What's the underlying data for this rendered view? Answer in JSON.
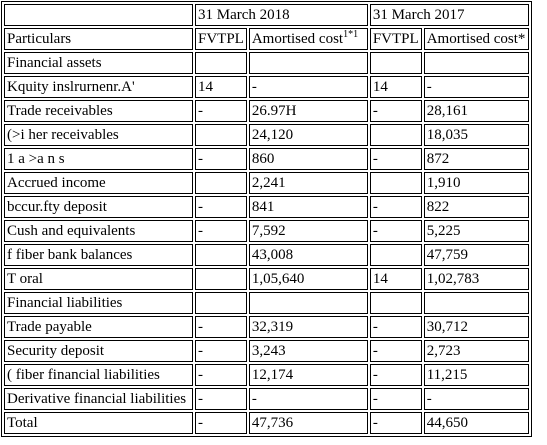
{
  "header": {
    "year_2018": "31 March 2018",
    "year_2017": "31 March 2017",
    "particulars": "Particulars",
    "fvtpl_2018": "FVTPL",
    "amortised_2018": "Amortised cost",
    "amortised_2018_sup": "1*1",
    "fvtpl_2017": "FVTPL",
    "amortised_2017": "Amortised cost*"
  },
  "rows": [
    {
      "label": "Financial assets",
      "fv18": "",
      "am18": "",
      "fv17": "",
      "am17": ""
    },
    {
      "label": "Kquity inslrurnenr.A'",
      "fv18": "14",
      "am18": "-",
      "fv17": "14",
      "am17": "-"
    },
    {
      "label": "Trade receivables",
      "fv18": "-",
      "am18": "26.97H",
      "fv17": "-",
      "am17": "28,161"
    },
    {
      "label": "(>i her receivables",
      "fv18": "",
      "am18": "24,120",
      "fv17": "",
      "am17": "18,035"
    },
    {
      "label": "1 a >a n s",
      "fv18": "-",
      "am18": "860",
      "fv17": "-",
      "am17": "872"
    },
    {
      "label": "Accrued income",
      "fv18": "",
      "am18": "2,241",
      "fv17": "",
      "am17": "1,910"
    },
    {
      "label": "bccur.fty deposit",
      "fv18": "-",
      "am18": "841",
      "fv17": "-",
      "am17": "822"
    },
    {
      "label": "Cush and equivalents",
      "fv18": "-",
      "am18": "7,592",
      "fv17": "-",
      "am17": "5,225"
    },
    {
      "label": "f fiber bank balances",
      "fv18": "",
      "am18": "43,008",
      "fv17": "",
      "am17": "47,759"
    },
    {
      "label": "T oral",
      "fv18": "",
      "am18": "1,05,640",
      "fv17": "14",
      "am17": "1,02,783"
    },
    {
      "label": "Financial liabilities",
      "fv18": "",
      "am18": "",
      "fv17": "",
      "am17": ""
    },
    {
      "label": "Trade payable",
      "fv18": "-",
      "am18": "32,319",
      "fv17": "-",
      "am17": "30,712"
    },
    {
      "label": "Security deposit",
      "fv18": "-",
      "am18": "3,243",
      "fv17": "-",
      "am17": "2,723"
    },
    {
      "label": "( fiber financial liabilities",
      "fv18": "-",
      "am18": "12,174",
      "fv17": "-",
      "am17": "11,215"
    },
    {
      "label": "Derivative financial liabilities",
      "fv18": "-",
      "am18": "-",
      "fv17": "-",
      "am17": "-"
    },
    {
      "label": "Total",
      "fv18": "-",
      "am18": "47,736",
      "fv17": "-",
      "am17": "44,650"
    }
  ]
}
